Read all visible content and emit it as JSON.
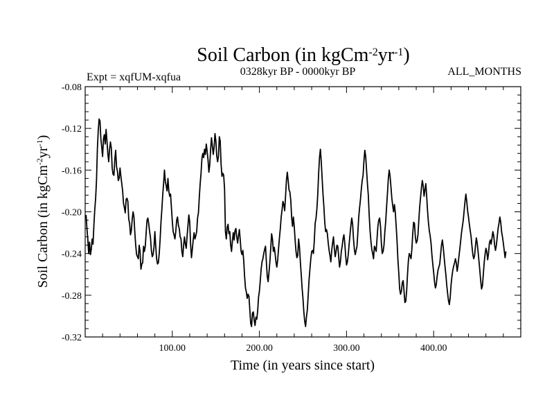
{
  "chart_data": {
    "type": "line",
    "title_main": "Soil Carbon (in kgCm",
    "title_sup1": "-2",
    "title_mid": "yr",
    "title_sup2": "-1",
    "title_end": ")",
    "subtitle_left": "Expt = xqfUM-xqfua",
    "subtitle_center": "0328kyr BP - 0000kyr BP",
    "subtitle_right": "ALL_MONTHS",
    "xlabel": "Time (in years since start)",
    "ylabel_main": "Soil Carbon (in kgCm",
    "ylabel_sup1": "-2",
    "ylabel_mid": "yr",
    "ylabel_sup2": "-1",
    "ylabel_end": ")",
    "xlim": [
      0,
      500
    ],
    "ylim": [
      -0.32,
      -0.08
    ],
    "x_ticks": [
      100,
      200,
      300,
      400
    ],
    "x_tick_labels": [
      "100.00",
      "200.00",
      "300.00",
      "400.00"
    ],
    "y_ticks": [
      -0.08,
      -0.12,
      -0.16,
      -0.2,
      -0.24,
      -0.28,
      -0.32
    ],
    "y_tick_labels": [
      "-0.08",
      "-0.12",
      "-0.16",
      "-0.20",
      "-0.24",
      "-0.28",
      "-0.32"
    ],
    "line_color": "#000000",
    "series": [
      {
        "name": "Soil Carbon",
        "x_start": 1,
        "x_step": 1,
        "values": [
          -0.203,
          -0.216,
          -0.226,
          -0.24,
          -0.229,
          -0.241,
          -0.236,
          -0.226,
          -0.231,
          -0.213,
          -0.198,
          -0.187,
          -0.17,
          -0.14,
          -0.122,
          -0.111,
          -0.113,
          -0.13,
          -0.138,
          -0.147,
          -0.13,
          -0.126,
          -0.135,
          -0.121,
          -0.132,
          -0.144,
          -0.152,
          -0.14,
          -0.133,
          -0.139,
          -0.158,
          -0.164,
          -0.165,
          -0.15,
          -0.141,
          -0.157,
          -0.161,
          -0.17,
          -0.168,
          -0.158,
          -0.166,
          -0.173,
          -0.18,
          -0.192,
          -0.196,
          -0.201,
          -0.188,
          -0.187,
          -0.19,
          -0.207,
          -0.211,
          -0.222,
          -0.218,
          -0.207,
          -0.2,
          -0.205,
          -0.22,
          -0.232,
          -0.241,
          -0.243,
          -0.245,
          -0.232,
          -0.238,
          -0.255,
          -0.25,
          -0.249,
          -0.233,
          -0.238,
          -0.233,
          -0.22,
          -0.208,
          -0.206,
          -0.212,
          -0.219,
          -0.225,
          -0.237,
          -0.243,
          -0.241,
          -0.234,
          -0.219,
          -0.233,
          -0.245,
          -0.25,
          -0.249,
          -0.24,
          -0.227,
          -0.21,
          -0.198,
          -0.184,
          -0.173,
          -0.16,
          -0.171,
          -0.175,
          -0.18,
          -0.168,
          -0.18,
          -0.185,
          -0.183,
          -0.196,
          -0.209,
          -0.219,
          -0.222,
          -0.226,
          -0.219,
          -0.208,
          -0.205,
          -0.213,
          -0.216,
          -0.224,
          -0.226,
          -0.238,
          -0.243,
          -0.232,
          -0.224,
          -0.231,
          -0.235,
          -0.223,
          -0.213,
          -0.203,
          -0.21,
          -0.231,
          -0.244,
          -0.236,
          -0.227,
          -0.22,
          -0.226,
          -0.223,
          -0.219,
          -0.206,
          -0.201,
          -0.186,
          -0.173,
          -0.163,
          -0.149,
          -0.144,
          -0.148,
          -0.14,
          -0.145,
          -0.135,
          -0.142,
          -0.15,
          -0.162,
          -0.155,
          -0.14,
          -0.129,
          -0.137,
          -0.145,
          -0.138,
          -0.125,
          -0.132,
          -0.146,
          -0.152,
          -0.147,
          -0.128,
          -0.132,
          -0.154,
          -0.166,
          -0.163,
          -0.165,
          -0.178,
          -0.219,
          -0.226,
          -0.215,
          -0.212,
          -0.221,
          -0.219,
          -0.232,
          -0.238,
          -0.228,
          -0.22,
          -0.227,
          -0.218,
          -0.216,
          -0.224,
          -0.23,
          -0.223,
          -0.217,
          -0.227,
          -0.238,
          -0.241,
          -0.237,
          -0.247,
          -0.262,
          -0.273,
          -0.277,
          -0.283,
          -0.279,
          -0.281,
          -0.294,
          -0.307,
          -0.31,
          -0.297,
          -0.296,
          -0.304,
          -0.309,
          -0.301,
          -0.303,
          -0.295,
          -0.282,
          -0.276,
          -0.266,
          -0.255,
          -0.248,
          -0.245,
          -0.24,
          -0.236,
          -0.233,
          -0.248,
          -0.262,
          -0.267,
          -0.258,
          -0.248,
          -0.235,
          -0.221,
          -0.226,
          -0.238,
          -0.234,
          -0.24,
          -0.248,
          -0.253,
          -0.246,
          -0.235,
          -0.225,
          -0.216,
          -0.205,
          -0.198,
          -0.19,
          -0.193,
          -0.199,
          -0.185,
          -0.17,
          -0.162,
          -0.17,
          -0.179,
          -0.181,
          -0.189,
          -0.205,
          -0.214,
          -0.205,
          -0.214,
          -0.227,
          -0.238,
          -0.244,
          -0.242,
          -0.226,
          -0.234,
          -0.248,
          -0.26,
          -0.273,
          -0.283,
          -0.296,
          -0.305,
          -0.31,
          -0.301,
          -0.294,
          -0.28,
          -0.265,
          -0.255,
          -0.245,
          -0.238,
          -0.237,
          -0.24,
          -0.228,
          -0.211,
          -0.206,
          -0.197,
          -0.183,
          -0.163,
          -0.148,
          -0.14,
          -0.152,
          -0.168,
          -0.183,
          -0.195,
          -0.21,
          -0.219,
          -0.217,
          -0.221,
          -0.23,
          -0.237,
          -0.242,
          -0.248,
          -0.237,
          -0.23,
          -0.224,
          -0.235,
          -0.243,
          -0.238,
          -0.232,
          -0.233,
          -0.243,
          -0.253,
          -0.248,
          -0.238,
          -0.233,
          -0.226,
          -0.222,
          -0.23,
          -0.242,
          -0.251,
          -0.248,
          -0.241,
          -0.231,
          -0.222,
          -0.213,
          -0.206,
          -0.212,
          -0.226,
          -0.236,
          -0.241,
          -0.237,
          -0.233,
          -0.22,
          -0.205,
          -0.196,
          -0.188,
          -0.178,
          -0.17,
          -0.165,
          -0.151,
          -0.141,
          -0.147,
          -0.16,
          -0.173,
          -0.184,
          -0.203,
          -0.218,
          -0.228,
          -0.236,
          -0.24,
          -0.245,
          -0.233,
          -0.235,
          -0.238,
          -0.226,
          -0.214,
          -0.208,
          -0.206,
          -0.214,
          -0.23,
          -0.24,
          -0.238,
          -0.232,
          -0.219,
          -0.209,
          -0.195,
          -0.182,
          -0.168,
          -0.16,
          -0.166,
          -0.176,
          -0.187,
          -0.194,
          -0.2,
          -0.193,
          -0.201,
          -0.214,
          -0.228,
          -0.246,
          -0.259,
          -0.274,
          -0.279,
          -0.276,
          -0.268,
          -0.266,
          -0.276,
          -0.287,
          -0.286,
          -0.276,
          -0.26,
          -0.247,
          -0.24,
          -0.242,
          -0.245,
          -0.236,
          -0.221,
          -0.21,
          -0.211,
          -0.224,
          -0.23,
          -0.228,
          -0.222,
          -0.208,
          -0.195,
          -0.186,
          -0.177,
          -0.17,
          -0.175,
          -0.185,
          -0.179,
          -0.173,
          -0.185,
          -0.199,
          -0.21,
          -0.218,
          -0.223,
          -0.23,
          -0.241,
          -0.25,
          -0.258,
          -0.267,
          -0.273,
          -0.27,
          -0.262,
          -0.256,
          -0.253,
          -0.25,
          -0.241,
          -0.232,
          -0.227,
          -0.234,
          -0.243,
          -0.252,
          -0.26,
          -0.27,
          -0.278,
          -0.285,
          -0.289,
          -0.282,
          -0.27,
          -0.262,
          -0.256,
          -0.252,
          -0.249,
          -0.245,
          -0.249,
          -0.257,
          -0.251,
          -0.243,
          -0.236,
          -0.228,
          -0.22,
          -0.214,
          -0.208,
          -0.199,
          -0.19,
          -0.183,
          -0.19,
          -0.199,
          -0.205,
          -0.212,
          -0.218,
          -0.224,
          -0.233,
          -0.241,
          -0.245,
          -0.242,
          -0.233,
          -0.225,
          -0.23,
          -0.238,
          -0.247,
          -0.256,
          -0.266,
          -0.274,
          -0.271,
          -0.26,
          -0.249,
          -0.241,
          -0.235,
          -0.238,
          -0.246,
          -0.24,
          -0.23,
          -0.227,
          -0.231,
          -0.225,
          -0.219,
          -0.223,
          -0.232,
          -0.237,
          -0.232,
          -0.224,
          -0.216,
          -0.211,
          -0.205,
          -0.21,
          -0.219,
          -0.224,
          -0.23,
          -0.237,
          -0.244,
          -0.238
        ]
      }
    ]
  }
}
